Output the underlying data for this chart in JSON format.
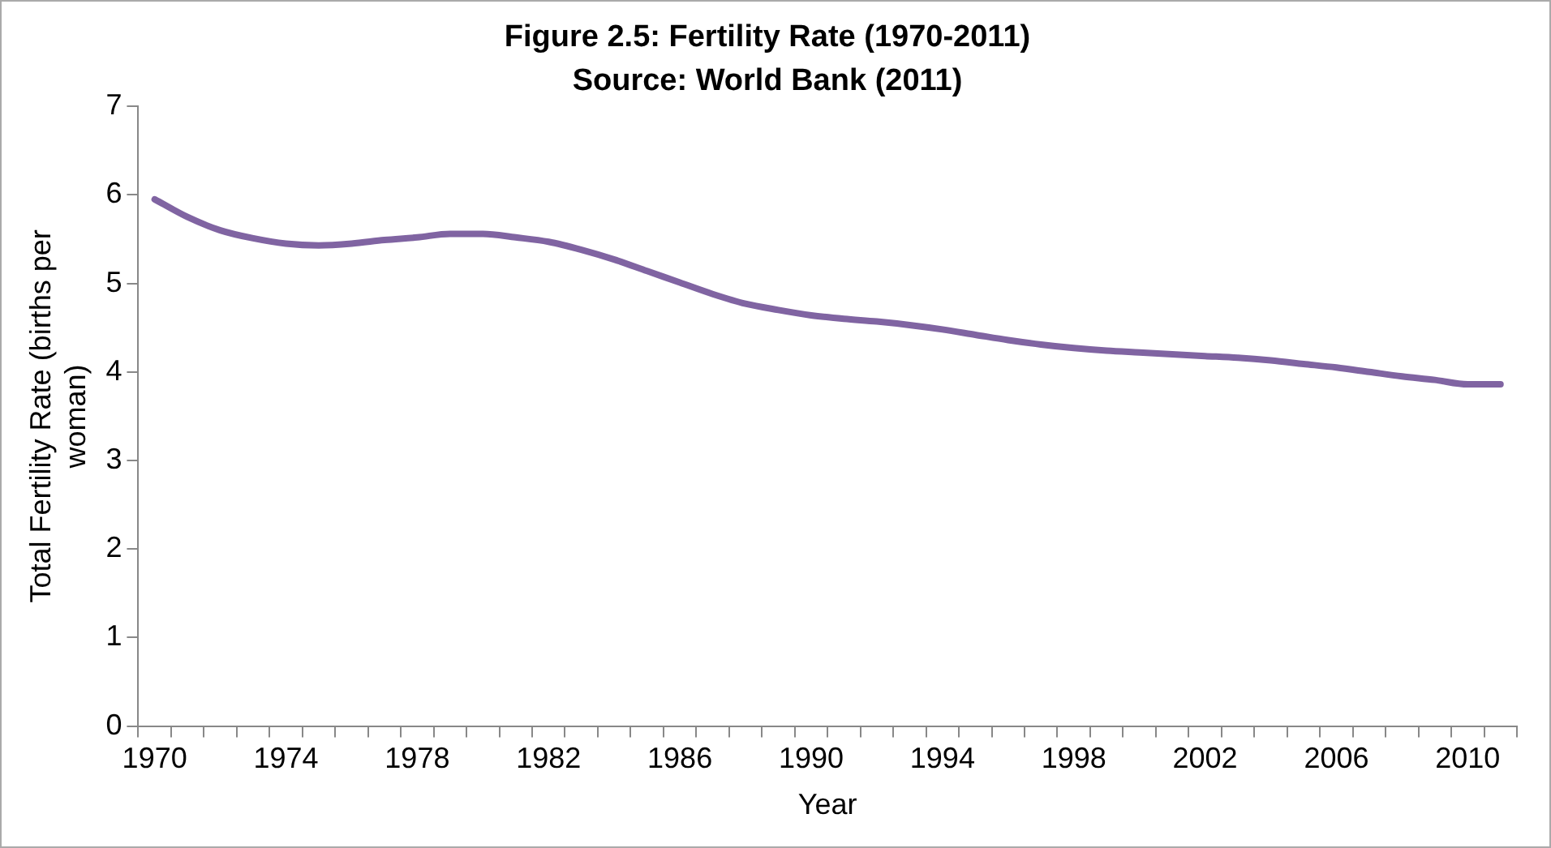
{
  "chart_data": {
    "type": "line",
    "title": "Figure 2.5: Fertility Rate (1970-2011)",
    "subtitle": "Source: World Bank (2011)",
    "xlabel": "Year",
    "ylabel": "Total Fertility Rate (births per woman)",
    "categories": [
      "1970",
      null,
      null,
      null,
      "1974",
      null,
      null,
      null,
      "1978",
      null,
      null,
      null,
      "1982",
      null,
      null,
      null,
      "1986",
      null,
      null,
      null,
      "1990",
      null,
      null,
      null,
      "1994",
      null,
      null,
      null,
      "1998",
      null,
      null,
      null,
      "2002",
      null,
      null,
      null,
      "2006",
      null,
      null,
      null,
      "2010",
      null
    ],
    "series": [
      {
        "color": "#8064a2",
        "values": [
          5.95,
          5.75,
          5.6,
          5.51,
          5.45,
          5.43,
          5.45,
          5.49,
          5.52,
          5.56,
          5.56,
          5.52,
          5.47,
          5.38,
          5.27,
          5.14,
          5.01,
          4.88,
          4.77,
          4.7,
          4.64,
          4.6,
          4.57,
          4.53,
          4.48,
          4.42,
          4.36,
          4.31,
          4.27,
          4.24,
          4.22,
          4.2,
          4.18,
          4.16,
          4.13,
          4.09,
          4.05,
          4.0,
          3.95,
          3.91,
          3.86,
          3.86
        ]
      }
    ],
    "ylim": [
      0,
      7
    ],
    "yticks": [
      0,
      1,
      2,
      3,
      4,
      5,
      6,
      7
    ],
    "grid": false,
    "legend": false,
    "marker": "none",
    "line_style": "solid"
  }
}
